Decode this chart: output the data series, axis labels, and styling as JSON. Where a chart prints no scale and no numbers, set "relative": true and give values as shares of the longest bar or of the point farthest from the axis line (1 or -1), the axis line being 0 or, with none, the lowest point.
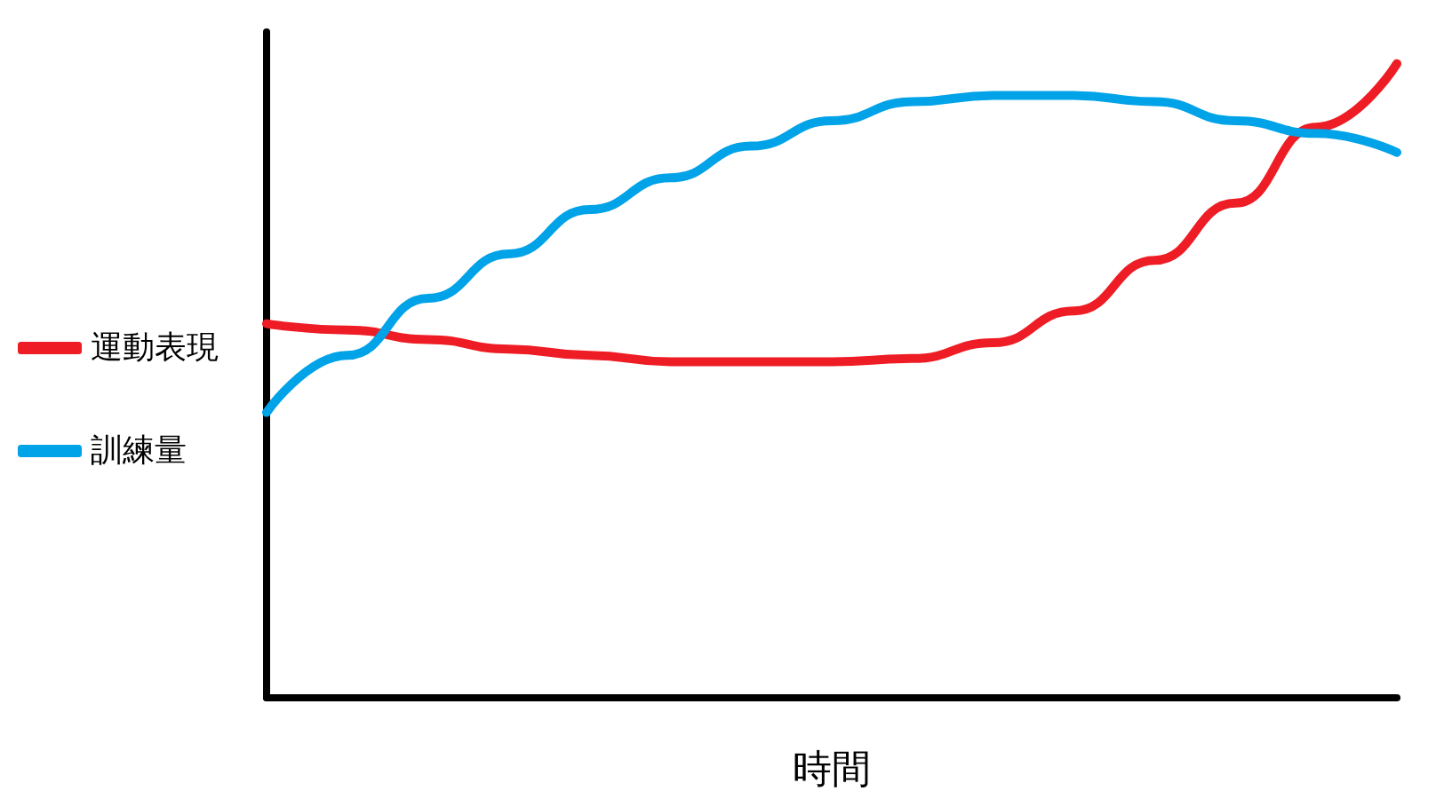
{
  "chart_data": {
    "type": "line",
    "xlabel": "時間",
    "relative": true,
    "categories": [
      null,
      null,
      null,
      null,
      null,
      null,
      null,
      null,
      null,
      null,
      null,
      null,
      null,
      null,
      null
    ],
    "series": [
      {
        "name": "運動表現",
        "color": "#ee1c24",
        "values": [
          0.59,
          0.58,
          0.565,
          0.55,
          0.54,
          0.53,
          0.53,
          0.53,
          0.535,
          0.56,
          0.61,
          0.69,
          0.78,
          0.9,
          1.0
        ]
      },
      {
        "name": "訓練量",
        "color": "#00a2e8",
        "values": [
          0.45,
          0.54,
          0.63,
          0.7,
          0.77,
          0.82,
          0.87,
          0.91,
          0.94,
          0.95,
          0.95,
          0.94,
          0.91,
          0.89,
          0.86
        ]
      }
    ],
    "legend": "left",
    "grid": false,
    "marker": "none",
    "line_style": "solid"
  }
}
